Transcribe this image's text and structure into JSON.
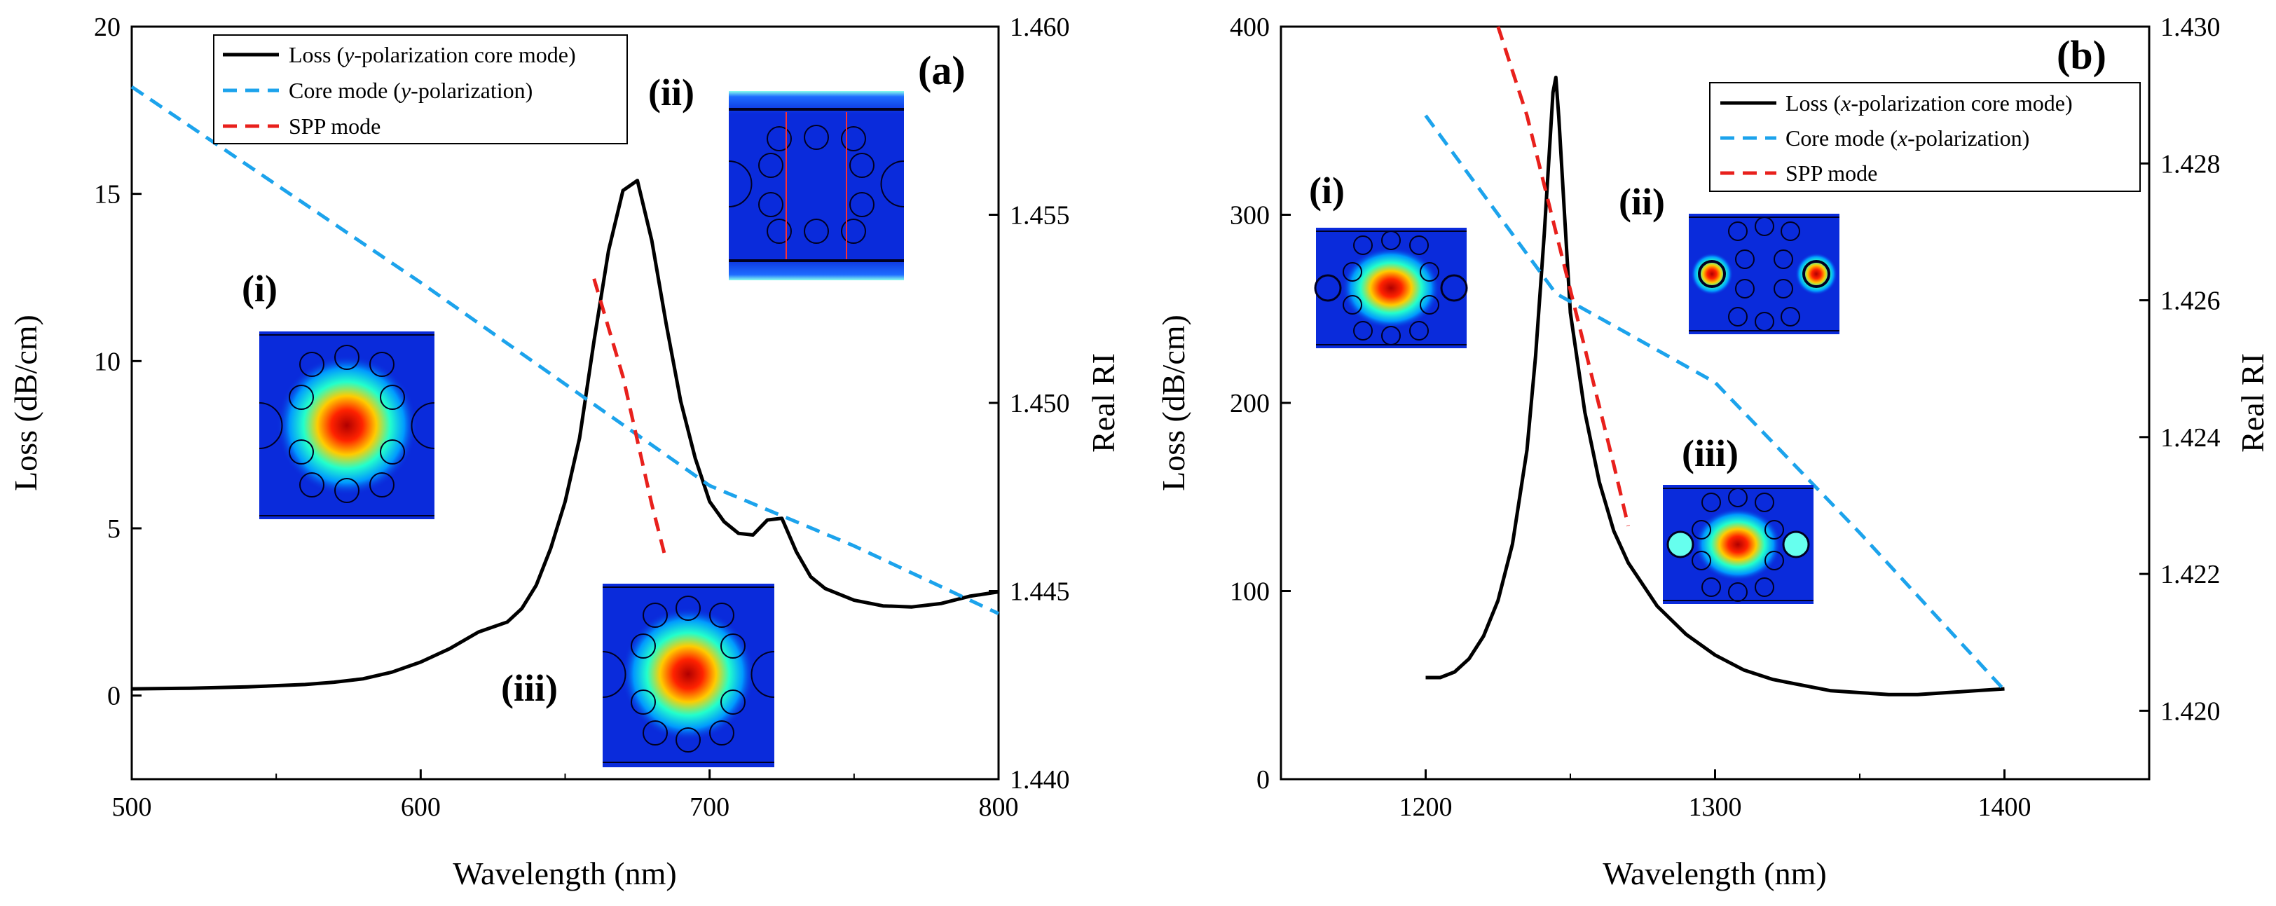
{
  "chart_data": [
    {
      "panel": "(a)",
      "type": "line",
      "xlabel": "Wavelength (nm)",
      "ylabel": "Loss (dB/cm)",
      "y2label": "Real RI",
      "xlim": [
        500,
        800
      ],
      "ylim": [
        -2.5,
        20
      ],
      "y2lim": [
        1.44,
        1.46
      ],
      "xticks": [
        "500",
        "600",
        "700",
        "800"
      ],
      "yticks": [
        "0",
        "5",
        "10",
        "15",
        "20"
      ],
      "y2ticks": [
        "1.440",
        "1.445",
        "1.450",
        "1.455",
        "1.460"
      ],
      "legend": [
        "Loss (y-polarization core mode)",
        "Core mode (y-polarization)",
        "SPP mode"
      ],
      "legend_parts": [
        {
          "pre": "Loss (",
          "it": "y",
          "post": "-polarization core mode)"
        },
        {
          "pre": "Core mode (",
          "it": "y",
          "post": "-polarization)"
        },
        {
          "pre": "SPP mode",
          "it": "",
          "post": ""
        }
      ],
      "insets": [
        "(i)",
        "(ii)",
        "(iii)"
      ],
      "series": [
        {
          "name": "Loss (y-polarization core mode)",
          "axis": "left",
          "color": "#000000",
          "style": "solid",
          "x": [
            500,
            520,
            540,
            560,
            570,
            580,
            590,
            600,
            610,
            620,
            630,
            635,
            640,
            645,
            650,
            655,
            660,
            665,
            670,
            675,
            680,
            685,
            690,
            695,
            700,
            705,
            710,
            715,
            720,
            725,
            730,
            735,
            740,
            750,
            760,
            770,
            780,
            790,
            800
          ],
          "y": [
            0.2,
            0.22,
            0.26,
            0.33,
            0.4,
            0.5,
            0.7,
            1.0,
            1.4,
            1.9,
            2.2,
            2.6,
            3.3,
            4.4,
            5.8,
            7.7,
            10.6,
            13.3,
            15.1,
            15.4,
            13.6,
            11.1,
            8.8,
            7.1,
            5.8,
            5.2,
            4.85,
            4.8,
            5.25,
            5.3,
            4.3,
            3.55,
            3.2,
            2.85,
            2.68,
            2.65,
            2.75,
            2.97,
            3.1
          ]
        },
        {
          "name": "Core mode (y-polarization)",
          "axis": "right",
          "color": "#1ca3ec",
          "style": "dashed",
          "x": [
            500,
            550,
            600,
            650,
            700,
            750,
            800
          ],
          "y": [
            1.4584,
            1.4558,
            1.4532,
            1.4505,
            1.4478,
            1.4462,
            1.4444
          ]
        },
        {
          "name": "SPP mode",
          "axis": "right",
          "color": "#e8201c",
          "style": "dashed",
          "x": [
            660,
            670,
            680,
            685
          ],
          "y": [
            1.4533,
            1.4507,
            1.4473,
            1.4458
          ]
        }
      ]
    },
    {
      "panel": "(b)",
      "type": "line",
      "xlabel": "Wavelength (nm)",
      "ylabel": "Loss (dB/cm)",
      "y2label": "Real RI",
      "xlim": [
        1150,
        1450
      ],
      "ylim": [
        0,
        400
      ],
      "y2lim": [
        1.419,
        1.43
      ],
      "xticks": [
        "1200",
        "1300",
        "1400"
      ],
      "yticks": [
        "0",
        "100",
        "200",
        "300",
        "400"
      ],
      "y2ticks": [
        "1.420",
        "1.422",
        "1.424",
        "1.426",
        "1.428",
        "1.430"
      ],
      "legend": [
        "Loss (x-polarization core mode)",
        "Core mode (x-polarization)",
        "SPP mode"
      ],
      "legend_parts": [
        {
          "pre": "Loss (",
          "it": "x",
          "post": "-polarization core mode)"
        },
        {
          "pre": "Core mode (",
          "it": "x",
          "post": "-polarization)"
        },
        {
          "pre": "SPP mode",
          "it": "",
          "post": ""
        }
      ],
      "insets": [
        "(i)",
        "(ii)",
        "(iii)"
      ],
      "series": [
        {
          "name": "Loss (x-polarization core mode)",
          "axis": "left",
          "color": "#000000",
          "style": "solid",
          "x": [
            1200,
            1205,
            1210,
            1215,
            1220,
            1225,
            1230,
            1235,
            1238,
            1241,
            1243,
            1244,
            1245,
            1246,
            1248,
            1250,
            1255,
            1260,
            1265,
            1270,
            1280,
            1290,
            1300,
            1310,
            1320,
            1330,
            1340,
            1350,
            1360,
            1370,
            1380,
            1390,
            1400
          ],
          "y": [
            54,
            54,
            57,
            64,
            76,
            95,
            125,
            175,
            225,
            290,
            340,
            365,
            373,
            352,
            300,
            248,
            195,
            158,
            132,
            115,
            92,
            77,
            66,
            58,
            53,
            50,
            47,
            46,
            45,
            45,
            46,
            47,
            48
          ]
        },
        {
          "name": "Core mode (x-polarization)",
          "axis": "right",
          "color": "#1ca3ec",
          "style": "dashed",
          "x": [
            1200,
            1245,
            1300,
            1350,
            1400
          ],
          "y": [
            1.4287,
            1.4261,
            1.4248,
            1.4226,
            1.4203
          ]
        },
        {
          "name": "SPP mode",
          "axis": "right",
          "color": "#e8201c",
          "style": "dashed",
          "x": [
            1225,
            1235,
            1245,
            1255,
            1265,
            1270
          ],
          "y": [
            1.43,
            1.4287,
            1.427,
            1.4253,
            1.4236,
            1.4227
          ]
        }
      ]
    }
  ]
}
